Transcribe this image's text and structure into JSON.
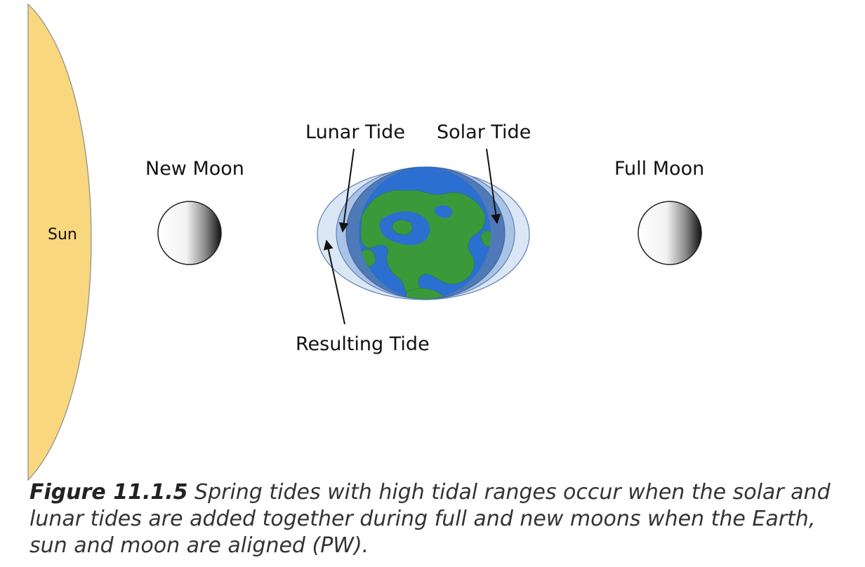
{
  "labels": {
    "sun": "Sun",
    "new_moon": "New Moon",
    "full_moon": "Full Moon",
    "lunar_tide": "Lunar Tide",
    "solar_tide": "Solar Tide",
    "resulting_tide": "Resulting Tide"
  },
  "caption": {
    "figure_number": "Figure 11.1.5",
    "text": " Spring tides with high tidal ranges occur when the solar and lunar tides are added together during full and new moons when the Earth, sun and moon are aligned (PW)."
  },
  "colors": {
    "sun": "#f9d77e",
    "ocean": "#2b6fd1",
    "land": "#3a9a3a",
    "resulting_tide": "#dbe7f5",
    "lunar_tide": "#a9c3e6",
    "solar_tide": "#4f79b7"
  }
}
